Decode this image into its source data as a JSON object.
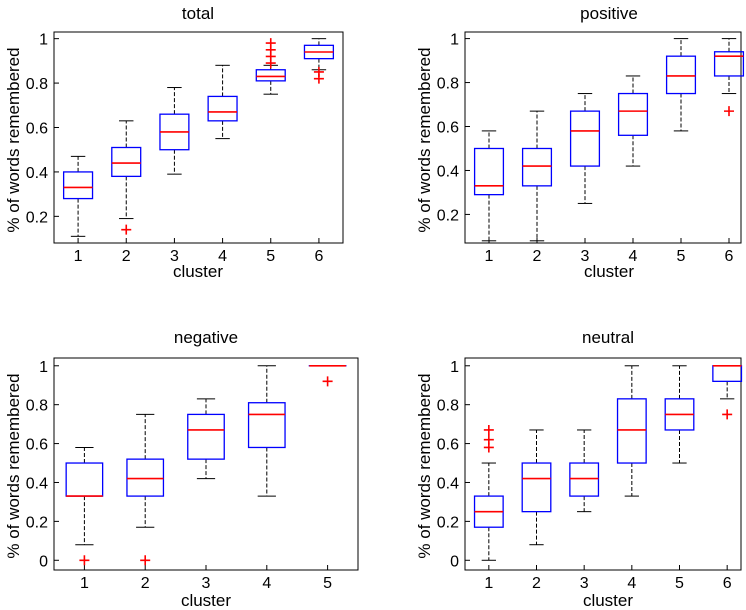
{
  "colors": {
    "box": "#0000ff",
    "median": "#ff0000",
    "whisker": "#000000",
    "outlier": "#ff0000",
    "axes": "#000000"
  },
  "chart_data": [
    {
      "type": "boxplot",
      "title": "total",
      "xlabel": "cluster",
      "ylabel": "% of words remembered",
      "ylim": [
        0.08,
        1.03
      ],
      "yticks": [
        {
          "v": 0.2,
          "label": "0.2"
        },
        {
          "v": 0.4,
          "label": "0.4"
        },
        {
          "v": 0.6,
          "label": "0.6"
        },
        {
          "v": 0.8,
          "label": "0.8"
        },
        {
          "v": 1,
          "label": "1"
        }
      ],
      "categories": [
        "1",
        "2",
        "3",
        "4",
        "5",
        "6"
      ],
      "boxes": [
        {
          "cat": "1",
          "wlo": 0.11,
          "q1": 0.28,
          "med": 0.33,
          "q3": 0.4,
          "whi": 0.47,
          "outliers": []
        },
        {
          "cat": "2",
          "wlo": 0.19,
          "q1": 0.38,
          "med": 0.44,
          "q3": 0.51,
          "whi": 0.63,
          "outliers": [
            0.14
          ]
        },
        {
          "cat": "3",
          "wlo": 0.39,
          "q1": 0.5,
          "med": 0.58,
          "q3": 0.66,
          "whi": 0.78,
          "outliers": []
        },
        {
          "cat": "4",
          "wlo": 0.55,
          "q1": 0.63,
          "med": 0.67,
          "q3": 0.74,
          "whi": 0.88,
          "outliers": []
        },
        {
          "cat": "5",
          "wlo": 0.75,
          "q1": 0.81,
          "med": 0.83,
          "q3": 0.86,
          "whi": 0.88,
          "outliers": [
            0.89,
            0.92,
            0.95,
            0.98
          ]
        },
        {
          "cat": "6",
          "wlo": 0.86,
          "q1": 0.91,
          "med": 0.94,
          "q3": 0.97,
          "whi": 1.0,
          "outliers": [
            0.82,
            0.85
          ]
        }
      ]
    },
    {
      "type": "boxplot",
      "title": "positive",
      "xlabel": "cluster",
      "ylabel": "% of words remembered",
      "ylim": [
        0.07,
        1.03
      ],
      "yticks": [
        {
          "v": 0.2,
          "label": "0.2"
        },
        {
          "v": 0.4,
          "label": "0.4"
        },
        {
          "v": 0.6,
          "label": "0.6"
        },
        {
          "v": 0.8,
          "label": "0.8"
        },
        {
          "v": 1,
          "label": "1"
        }
      ],
      "categories": [
        "1",
        "2",
        "3",
        "4",
        "5",
        "6"
      ],
      "boxes": [
        {
          "cat": "1",
          "wlo": 0.08,
          "q1": 0.29,
          "med": 0.33,
          "q3": 0.5,
          "whi": 0.58,
          "outliers": []
        },
        {
          "cat": "2",
          "wlo": 0.08,
          "q1": 0.33,
          "med": 0.42,
          "q3": 0.5,
          "whi": 0.67,
          "outliers": []
        },
        {
          "cat": "3",
          "wlo": 0.25,
          "q1": 0.42,
          "med": 0.58,
          "q3": 0.67,
          "whi": 0.75,
          "outliers": []
        },
        {
          "cat": "4",
          "wlo": 0.42,
          "q1": 0.56,
          "med": 0.67,
          "q3": 0.75,
          "whi": 0.83,
          "outliers": []
        },
        {
          "cat": "5",
          "wlo": 0.58,
          "q1": 0.75,
          "med": 0.83,
          "q3": 0.92,
          "whi": 1.0,
          "outliers": []
        },
        {
          "cat": "6",
          "wlo": 0.75,
          "q1": 0.83,
          "med": 0.92,
          "q3": 0.94,
          "whi": 1.0,
          "outliers": [
            0.67
          ]
        }
      ]
    },
    {
      "type": "boxplot",
      "title": "negative",
      "xlabel": "cluster",
      "ylabel": "% of words remembered",
      "ylim": [
        -0.05,
        1.04
      ],
      "yticks": [
        {
          "v": 0,
          "label": "0"
        },
        {
          "v": 0.2,
          "label": "0.2"
        },
        {
          "v": 0.4,
          "label": "0.4"
        },
        {
          "v": 0.6,
          "label": "0.6"
        },
        {
          "v": 0.8,
          "label": "0.8"
        },
        {
          "v": 1,
          "label": "1"
        }
      ],
      "categories": [
        "1",
        "2",
        "3",
        "4",
        "5"
      ],
      "boxes": [
        {
          "cat": "1",
          "wlo": 0.08,
          "q1": 0.33,
          "med": 0.33,
          "q3": 0.5,
          "whi": 0.58,
          "outliers": [
            0
          ]
        },
        {
          "cat": "2",
          "wlo": 0.17,
          "q1": 0.33,
          "med": 0.42,
          "q3": 0.52,
          "whi": 0.75,
          "outliers": [
            0
          ]
        },
        {
          "cat": "3",
          "wlo": 0.42,
          "q1": 0.52,
          "med": 0.67,
          "q3": 0.75,
          "whi": 0.83,
          "outliers": []
        },
        {
          "cat": "4",
          "wlo": 0.33,
          "q1": 0.58,
          "med": 0.75,
          "q3": 0.81,
          "whi": 1.0,
          "outliers": []
        },
        {
          "cat": "5",
          "wlo": 1.0,
          "q1": 1.0,
          "med": 1.0,
          "q3": 1.0,
          "whi": 1.0,
          "outliers": [
            0.92
          ]
        }
      ]
    },
    {
      "type": "boxplot",
      "title": "neutral",
      "xlabel": "cluster",
      "ylabel": "% of words remembered",
      "ylim": [
        -0.05,
        1.04
      ],
      "yticks": [
        {
          "v": 0,
          "label": "0"
        },
        {
          "v": 0.2,
          "label": "0.2"
        },
        {
          "v": 0.4,
          "label": "0.4"
        },
        {
          "v": 0.6,
          "label": "0.6"
        },
        {
          "v": 0.8,
          "label": "0.8"
        },
        {
          "v": 1,
          "label": "1"
        }
      ],
      "categories": [
        "1",
        "2",
        "3",
        "4",
        "5",
        "6"
      ],
      "boxes": [
        {
          "cat": "1",
          "wlo": 0.0,
          "q1": 0.17,
          "med": 0.25,
          "q3": 0.33,
          "whi": 0.5,
          "outliers": [
            0.58,
            0.62,
            0.67
          ]
        },
        {
          "cat": "2",
          "wlo": 0.08,
          "q1": 0.25,
          "med": 0.42,
          "q3": 0.5,
          "whi": 0.67,
          "outliers": []
        },
        {
          "cat": "3",
          "wlo": 0.25,
          "q1": 0.33,
          "med": 0.42,
          "q3": 0.5,
          "whi": 0.67,
          "outliers": []
        },
        {
          "cat": "4",
          "wlo": 0.33,
          "q1": 0.5,
          "med": 0.67,
          "q3": 0.83,
          "whi": 1.0,
          "outliers": []
        },
        {
          "cat": "5",
          "wlo": 0.5,
          "q1": 0.67,
          "med": 0.75,
          "q3": 0.83,
          "whi": 1.0,
          "outliers": []
        },
        {
          "cat": "6",
          "wlo": 0.83,
          "q1": 0.92,
          "med": 1.0,
          "q3": 1.0,
          "whi": 1.0,
          "outliers": [
            0.75
          ]
        }
      ]
    }
  ]
}
